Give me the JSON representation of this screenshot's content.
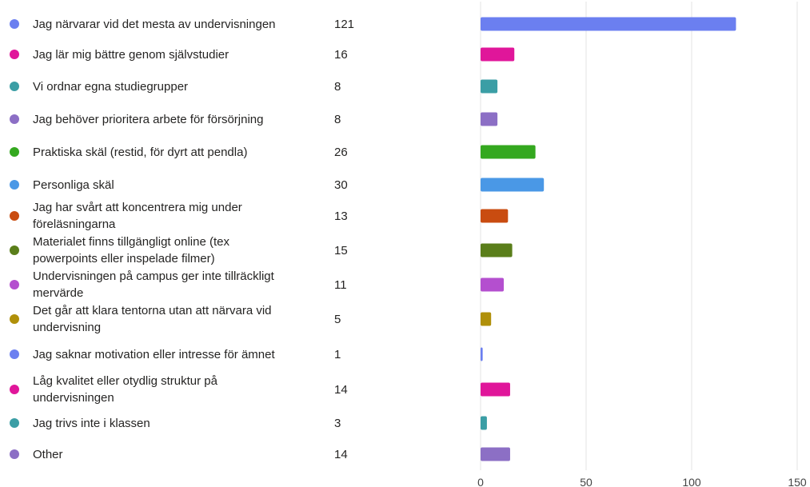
{
  "chart_data": {
    "type": "bar",
    "orientation": "horizontal",
    "title": "",
    "xlabel": "",
    "ylabel": "",
    "xlim": [
      0,
      150
    ],
    "ticks": [
      0,
      50,
      100,
      150
    ],
    "tick_labels": [
      "0",
      "50",
      "100",
      "150"
    ],
    "grid": true,
    "categories": [
      "Jag närvarar vid det mesta av undervisningen",
      "Jag lär mig bättre genom självstudier",
      "Vi ordnar egna studiegrupper",
      "Jag behöver prioritera arbete för försörjning",
      "Praktiska skäl (restid, för dyrt att pendla)",
      "Personliga skäl",
      "Jag har svårt att koncentrera mig under föreläsningarna",
      "Materialet finns tillgängligt online (tex powerpoints eller inspelade filmer)",
      "Undervisningen på campus ger inte tillräckligt mervärde",
      "Det går att klara tentorna utan att närvara vid undervisning",
      "Jag saknar motivation eller intresse för ämnet",
      "Låg kvalitet eller otydlig struktur på undervisningen",
      "Jag trivs inte i klassen",
      "Other"
    ],
    "values": [
      121,
      16,
      8,
      8,
      26,
      30,
      13,
      15,
      11,
      5,
      1,
      14,
      3,
      14
    ],
    "value_labels": [
      "121",
      "16",
      "8",
      "8",
      "26",
      "30",
      "13",
      "15",
      "11",
      "5",
      "1",
      "14",
      "3",
      "14"
    ],
    "colors": [
      "#6B7FF0",
      "#E0169A",
      "#3B9EA5",
      "#8C6FC5",
      "#34A81F",
      "#4A98E6",
      "#C94C10",
      "#5A7E1A",
      "#B44FCF",
      "#B0900A",
      "#6B7FF0",
      "#E0169A",
      "#3B9EA5",
      "#8C6FC5"
    ]
  }
}
